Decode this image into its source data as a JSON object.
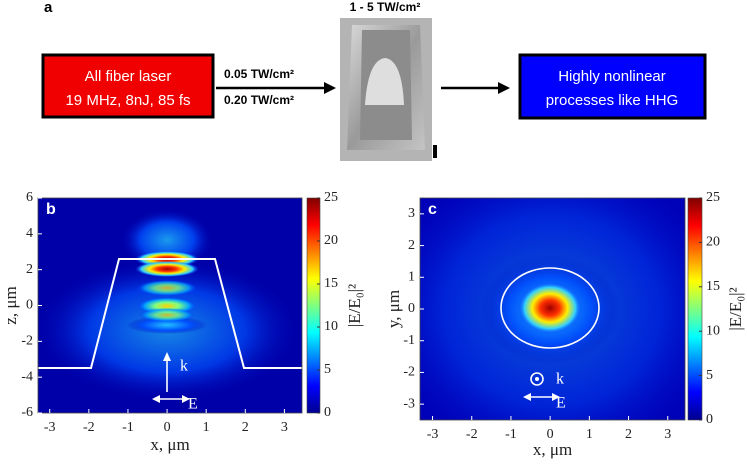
{
  "panel_a": {
    "label": "a",
    "source_box": [
      "All fiber laser",
      "19 MHz, 8nJ, 85 fs"
    ],
    "arrow_labels": [
      "0.05 TW/cm²",
      "0.20 TW/cm²"
    ],
    "image_label": "1 - 5 TW/cm²",
    "target_box": [
      "Highly nonlinear",
      "processes like HHG"
    ]
  },
  "chart_data": [
    {
      "type": "heatmap",
      "label": "b",
      "x_label": "x, μm",
      "y_label": "z, μm",
      "xlim": [
        -3.3,
        3.45
      ],
      "xticks": [
        -3,
        -2,
        -1,
        0,
        1,
        2,
        3
      ],
      "ylim": [
        -6,
        6
      ],
      "yticks": [
        -6,
        -4,
        -2,
        0,
        2,
        4,
        6
      ],
      "clim": [
        0,
        25
      ],
      "cticks": [
        0,
        5,
        10,
        15,
        20,
        25
      ],
      "colorbar_label": "|E/E₀|²",
      "annotations": [
        "k",
        "E"
      ]
    },
    {
      "type": "heatmap",
      "label": "c",
      "x_label": "x, μm",
      "y_label": "y, μm",
      "xlim": [
        -3.32,
        3.44
      ],
      "xticks": [
        -3,
        -2,
        -1,
        0,
        1,
        2,
        3
      ],
      "ylim": [
        -3.5,
        3.5
      ],
      "yticks": [
        -3,
        -2,
        -1,
        0,
        1,
        2,
        3
      ],
      "clim": [
        0,
        25
      ],
      "cticks": [
        0,
        5,
        10,
        15,
        20,
        25
      ],
      "colorbar_label": "|E/E₀|²",
      "annotations": [
        "k",
        "E"
      ]
    }
  ]
}
